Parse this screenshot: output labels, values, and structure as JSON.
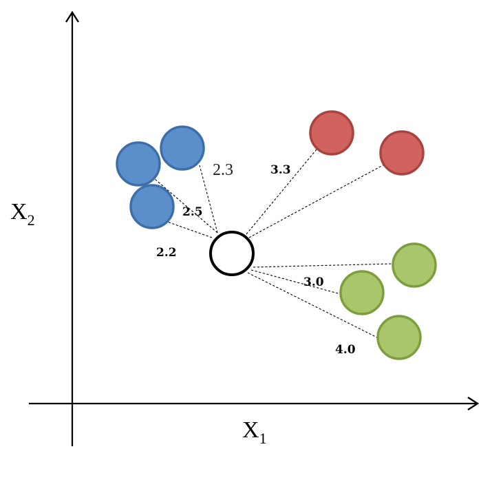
{
  "axes": {
    "x_label": "X",
    "x_sub": "1",
    "y_label": "X",
    "y_sub": "2"
  },
  "colors": {
    "blue_fill": "#5b8fcc",
    "blue_stroke": "#3d6ea8",
    "red_fill": "#d2625e",
    "red_stroke": "#a84440",
    "green_fill": "#a9c76a",
    "green_stroke": "#7d9e3e",
    "query_fill": "#ffffff",
    "query_stroke": "#000000"
  },
  "distances": {
    "d1": "2.3",
    "d2": "3.3",
    "d3": "2.5",
    "d4": "2.2",
    "d5": "3.0",
    "d6": "4.0"
  }
}
